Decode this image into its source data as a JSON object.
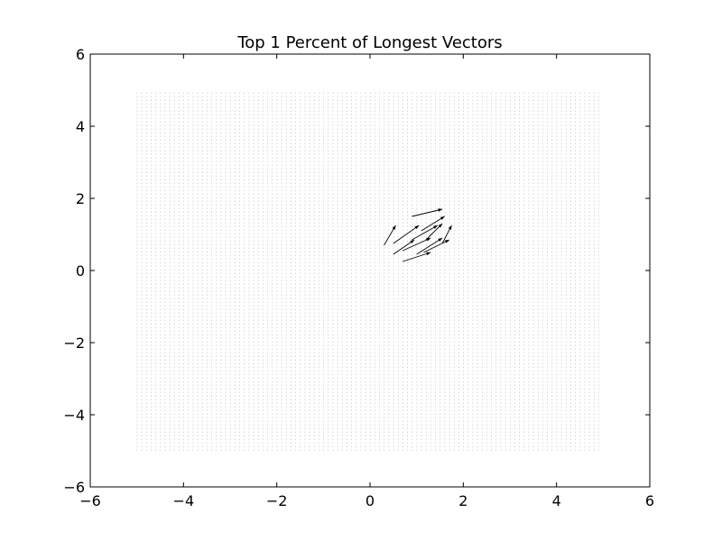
{
  "chart_data": {
    "type": "quiver",
    "title": "Top 1 Percent of Longest Vectors",
    "xlabel": "",
    "ylabel": "",
    "xlim": [
      -6,
      6
    ],
    "ylim": [
      -6,
      6
    ],
    "xticks": [
      -6,
      -4,
      -2,
      0,
      2,
      4,
      6
    ],
    "yticks": [
      -6,
      -4,
      -2,
      0,
      2,
      4,
      6
    ],
    "xtick_labels": [
      "−6",
      "−4",
      "−2",
      "0",
      "2",
      "4",
      "6"
    ],
    "ytick_labels": [
      "−6",
      "−4",
      "−2",
      "0",
      "2",
      "4",
      "6"
    ],
    "grid": false,
    "background_grid": {
      "x_start": -5.0,
      "x_end": 4.9,
      "x_step": 0.1,
      "y_start": -5.0,
      "y_end": 4.9,
      "y_step": 0.1,
      "color": "#bdbdbd",
      "description": "uniform grid of near-zero-length vectors"
    },
    "vectors": [
      {
        "x": 0.3,
        "y": 0.7,
        "u": 0.25,
        "v": 0.55
      },
      {
        "x": 0.5,
        "y": 0.45,
        "u": 0.45,
        "v": 0.4
      },
      {
        "x": 0.5,
        "y": 0.75,
        "u": 0.55,
        "v": 0.5
      },
      {
        "x": 0.9,
        "y": 1.5,
        "u": 0.65,
        "v": 0.2
      },
      {
        "x": 0.7,
        "y": 0.25,
        "u": 0.6,
        "v": 0.25
      },
      {
        "x": 0.7,
        "y": 0.55,
        "u": 0.6,
        "v": 0.35
      },
      {
        "x": 0.9,
        "y": 0.85,
        "u": 0.55,
        "v": 0.4
      },
      {
        "x": 1.1,
        "y": 1.1,
        "u": 0.5,
        "v": 0.4
      },
      {
        "x": 1.0,
        "y": 0.45,
        "u": 0.55,
        "v": 0.45
      },
      {
        "x": 1.15,
        "y": 0.5,
        "u": 0.55,
        "v": 0.35
      },
      {
        "x": 1.2,
        "y": 0.85,
        "u": 0.35,
        "v": 0.45
      },
      {
        "x": 1.55,
        "y": 0.75,
        "u": 0.2,
        "v": 0.5
      }
    ],
    "vector_color": "#000000"
  }
}
